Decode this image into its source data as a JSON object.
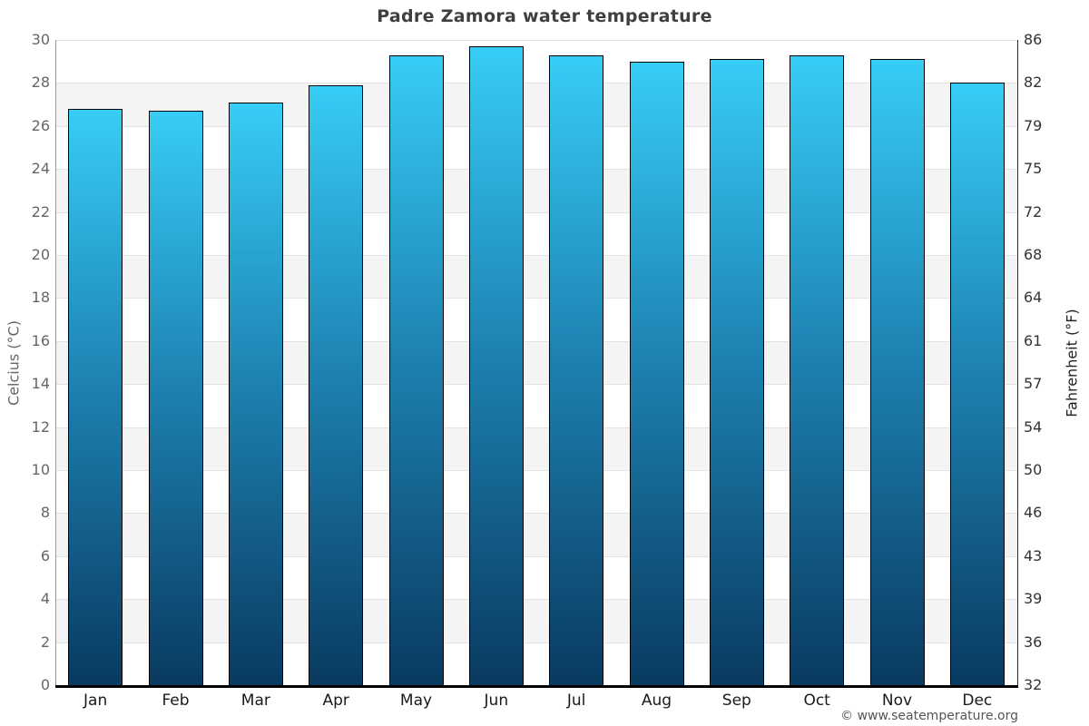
{
  "chart_data": {
    "type": "bar",
    "title": "Padre Zamora water temperature",
    "categories": [
      "Jan",
      "Feb",
      "Mar",
      "Apr",
      "May",
      "Jun",
      "Jul",
      "Aug",
      "Sep",
      "Oct",
      "Nov",
      "Dec"
    ],
    "values": [
      26.8,
      26.7,
      27.1,
      27.9,
      29.3,
      29.7,
      29.3,
      29.0,
      29.1,
      29.3,
      29.1,
      28.0
    ],
    "series_name": "Water temperature (°C)",
    "xlabel": "",
    "ylabel_left": "Celcius (°C)",
    "ylabel_right": "Fahrenheit (°F)",
    "ylim": [
      0,
      30
    ],
    "yticks_celsius": [
      0,
      2,
      4,
      6,
      8,
      10,
      12,
      14,
      16,
      18,
      20,
      22,
      24,
      26,
      28,
      30
    ],
    "yticks_fahrenheit": [
      32,
      36,
      39,
      43,
      46,
      50,
      54,
      57,
      61,
      64,
      68,
      72,
      75,
      79,
      82,
      86
    ],
    "legend": "none",
    "grid": "alternating horizontal bands every 2°C"
  },
  "footer": {
    "credit": "© www.seatemperature.org"
  },
  "colors": {
    "bar_gradient_top": "#37cdf6",
    "bar_gradient_mid": "#1d81b1",
    "bar_gradient_bottom": "#093a60",
    "bar_border": "#000000",
    "band_gray": "#f4f4f4",
    "gridline": "#e2e2e2",
    "axis_left": "#979797",
    "axis_right": "#2a2a2a",
    "axis_bottom": "#000000",
    "title_text": "#3f3f3f",
    "ytick_left_text": "#666666",
    "ytick_right_text": "#333333",
    "xtick_text": "#1a1a1a",
    "footer_text": "#555555"
  }
}
